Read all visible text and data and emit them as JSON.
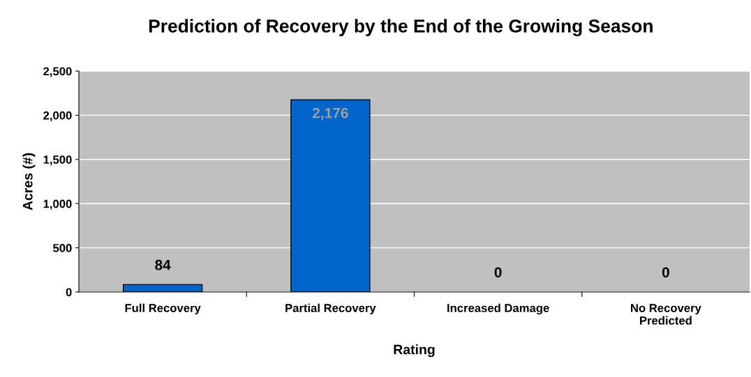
{
  "chart_data": {
    "type": "bar",
    "title": "Prediction of Recovery by the End of the Growing Season",
    "xlabel": "Rating",
    "ylabel": "Acres (#)",
    "categories": [
      "Full Recovery",
      "Partial Recovery",
      "Increased Damage",
      "No Recovery Predicted"
    ],
    "values": [
      84,
      2176,
      0,
      0
    ],
    "color": "#0066cc",
    "value_labels": [
      "84",
      "2,176",
      "0",
      "0"
    ],
    "ylim": [
      0,
      2500
    ],
    "yticks": [
      0,
      {
        "value": 500,
        "label": "500"
      },
      {
        "value": 1000,
        "label": "1,000"
      },
      {
        "value": 1500,
        "label": "1,500"
      },
      {
        "value": 2000,
        "label": "2,000"
      },
      {
        "value": 2500,
        "label": "2,500"
      }
    ],
    "grid": "y",
    "legend": false
  }
}
